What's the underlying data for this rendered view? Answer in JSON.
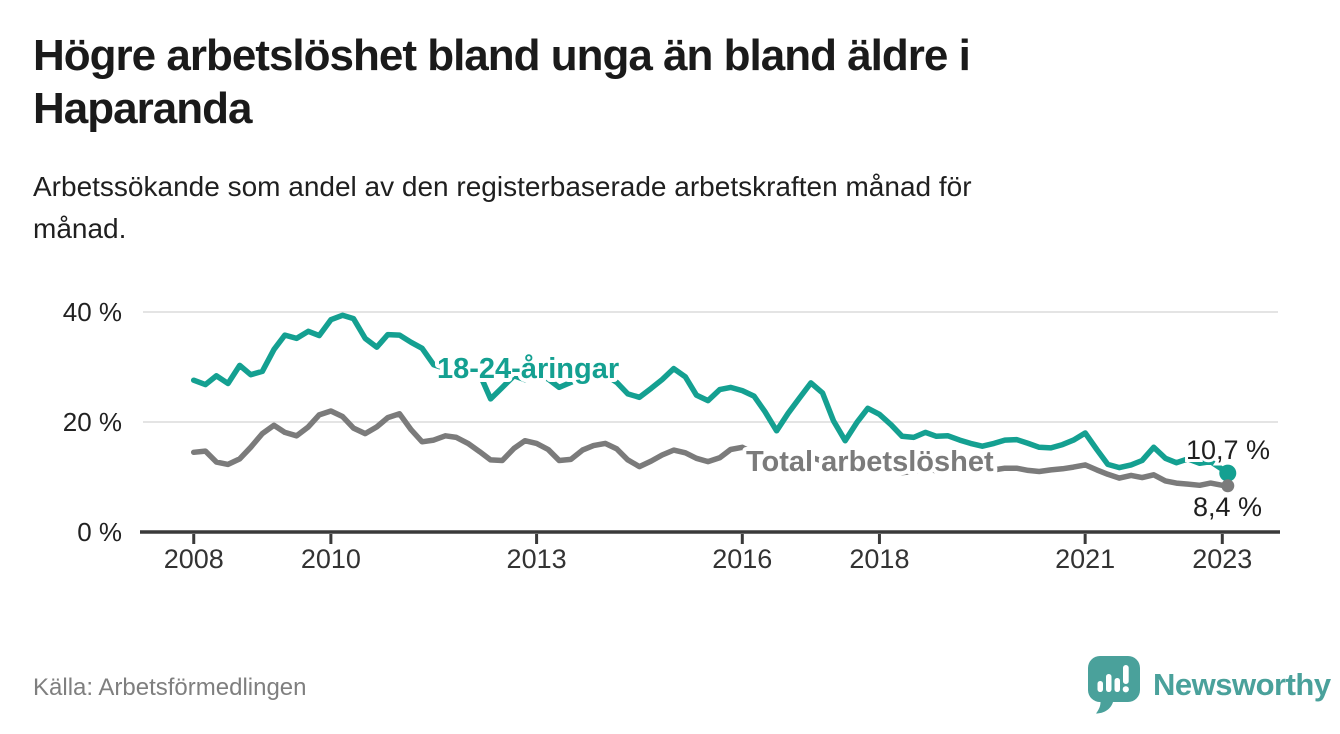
{
  "header": {
    "title": "Högre arbetslöshet bland unga än bland äldre i Haparanda",
    "subtitle": "Arbetssökande som andel av den registerbaserade arbetskraften månad för månad."
  },
  "footer": {
    "source": "Källa: Arbetsförmedlingen",
    "brand": "Newsworthy",
    "brand_icon": "bar-chart-speech-bubble-icon"
  },
  "colors": {
    "youth_line": "#14a091",
    "total_line": "#7b7b7b",
    "axis": "#3a3a3a",
    "gridline": "#dcdcdc",
    "tick_label": "#333333",
    "value_label": "#1f1f1f",
    "brand_teal": "#4aa19b",
    "source_text": "#7f7f7f"
  },
  "chart_data": {
    "type": "line",
    "title": "Högre arbetslöshet bland unga än bland äldre i Haparanda",
    "subtitle": "Arbetssökande som andel av den registerbaserade arbetskraften månad för månad.",
    "xlabel": "",
    "ylabel": "",
    "grid": "horizontal-only",
    "legend_position": "inline-labels-on-lines",
    "xlim": [
      2007.26,
      2023.84
    ],
    "ylim": [
      0,
      43
    ],
    "x_ticks": [
      2008,
      2010,
      2013,
      2016,
      2018,
      2021,
      2023
    ],
    "y_ticks": [
      {
        "value": 0,
        "label": "0 %"
      },
      {
        "value": 20,
        "label": "20 %"
      },
      {
        "value": 40,
        "label": "40 %"
      }
    ],
    "series": [
      {
        "name": "18-24-åringar",
        "color": "#14a091",
        "end_label": "10,7 %",
        "end_dot": true,
        "points": [
          [
            2008.0,
            27.6
          ],
          [
            2008.17,
            26.8
          ],
          [
            2008.33,
            28.4
          ],
          [
            2008.5,
            27.0
          ],
          [
            2008.67,
            30.3
          ],
          [
            2008.83,
            28.6
          ],
          [
            2009.0,
            29.2
          ],
          [
            2009.17,
            33.2
          ],
          [
            2009.33,
            35.8
          ],
          [
            2009.5,
            35.2
          ],
          [
            2009.67,
            36.5
          ],
          [
            2009.83,
            35.7
          ],
          [
            2010.0,
            38.6
          ],
          [
            2010.17,
            39.4
          ],
          [
            2010.33,
            38.8
          ],
          [
            2010.5,
            35.2
          ],
          [
            2010.67,
            33.6
          ],
          [
            2010.83,
            35.9
          ],
          [
            2011.0,
            35.8
          ],
          [
            2011.17,
            34.5
          ],
          [
            2011.33,
            33.4
          ],
          [
            2011.5,
            30.4
          ],
          [
            2011.67,
            29.7
          ],
          [
            2011.83,
            30.3
          ],
          [
            2012.0,
            29.4
          ],
          [
            2012.17,
            28.7
          ],
          [
            2012.33,
            24.2
          ],
          [
            2012.5,
            26.3
          ],
          [
            2012.67,
            28.4
          ],
          [
            2012.83,
            27.7
          ],
          [
            2013.0,
            28.7
          ],
          [
            2013.17,
            27.8
          ],
          [
            2013.33,
            26.3
          ],
          [
            2013.5,
            27.2
          ],
          [
            2013.67,
            28.3
          ],
          [
            2013.83,
            28.9
          ],
          [
            2014.0,
            28.6
          ],
          [
            2014.17,
            27.2
          ],
          [
            2014.33,
            25.1
          ],
          [
            2014.5,
            24.5
          ],
          [
            2014.67,
            26.1
          ],
          [
            2014.83,
            27.7
          ],
          [
            2015.0,
            29.7
          ],
          [
            2015.17,
            28.2
          ],
          [
            2015.33,
            24.9
          ],
          [
            2015.5,
            23.9
          ],
          [
            2015.67,
            25.9
          ],
          [
            2015.83,
            26.3
          ],
          [
            2016.0,
            25.7
          ],
          [
            2016.17,
            24.7
          ],
          [
            2016.33,
            21.9
          ],
          [
            2016.5,
            18.4
          ],
          [
            2016.67,
            21.6
          ],
          [
            2016.83,
            24.3
          ],
          [
            2017.0,
            27.1
          ],
          [
            2017.17,
            25.3
          ],
          [
            2017.33,
            20.2
          ],
          [
            2017.5,
            16.6
          ],
          [
            2017.67,
            19.9
          ],
          [
            2017.83,
            22.5
          ],
          [
            2018.0,
            21.4
          ],
          [
            2018.17,
            19.5
          ],
          [
            2018.33,
            17.4
          ],
          [
            2018.5,
            17.2
          ],
          [
            2018.67,
            18.1
          ],
          [
            2018.83,
            17.4
          ],
          [
            2019.0,
            17.5
          ],
          [
            2019.17,
            16.7
          ],
          [
            2019.33,
            16.1
          ],
          [
            2019.5,
            15.6
          ],
          [
            2019.67,
            16.1
          ],
          [
            2019.83,
            16.7
          ],
          [
            2020.0,
            16.8
          ],
          [
            2020.17,
            16.1
          ],
          [
            2020.33,
            15.4
          ],
          [
            2020.5,
            15.3
          ],
          [
            2020.67,
            15.9
          ],
          [
            2020.83,
            16.7
          ],
          [
            2021.0,
            18.0
          ],
          [
            2021.17,
            15.0
          ],
          [
            2021.33,
            12.3
          ],
          [
            2021.5,
            11.7
          ],
          [
            2021.67,
            12.2
          ],
          [
            2021.83,
            13.0
          ],
          [
            2022.0,
            15.4
          ],
          [
            2022.17,
            13.4
          ],
          [
            2022.33,
            12.6
          ],
          [
            2022.5,
            13.3
          ],
          [
            2022.67,
            12.5
          ],
          [
            2022.83,
            12.8
          ],
          [
            2023.0,
            11.4
          ],
          [
            2023.08,
            10.7
          ]
        ]
      },
      {
        "name": "Total arbetslöshet",
        "color": "#7b7b7b",
        "end_label": "8,4 %",
        "end_dot": true,
        "points": [
          [
            2008.0,
            14.5
          ],
          [
            2008.17,
            14.7
          ],
          [
            2008.33,
            12.7
          ],
          [
            2008.5,
            12.3
          ],
          [
            2008.67,
            13.3
          ],
          [
            2008.83,
            15.4
          ],
          [
            2009.0,
            17.9
          ],
          [
            2009.17,
            19.4
          ],
          [
            2009.33,
            18.1
          ],
          [
            2009.5,
            17.5
          ],
          [
            2009.67,
            19.1
          ],
          [
            2009.83,
            21.3
          ],
          [
            2010.0,
            22.0
          ],
          [
            2010.17,
            21.0
          ],
          [
            2010.33,
            18.9
          ],
          [
            2010.5,
            17.9
          ],
          [
            2010.67,
            19.1
          ],
          [
            2010.83,
            20.8
          ],
          [
            2011.0,
            21.5
          ],
          [
            2011.17,
            18.6
          ],
          [
            2011.33,
            16.4
          ],
          [
            2011.5,
            16.7
          ],
          [
            2011.67,
            17.5
          ],
          [
            2011.83,
            17.2
          ],
          [
            2012.0,
            16.1
          ],
          [
            2012.17,
            14.6
          ],
          [
            2012.33,
            13.1
          ],
          [
            2012.5,
            13.0
          ],
          [
            2012.67,
            15.2
          ],
          [
            2012.83,
            16.6
          ],
          [
            2013.0,
            16.1
          ],
          [
            2013.17,
            15.0
          ],
          [
            2013.33,
            13.0
          ],
          [
            2013.5,
            13.2
          ],
          [
            2013.67,
            14.9
          ],
          [
            2013.83,
            15.7
          ],
          [
            2014.0,
            16.1
          ],
          [
            2014.17,
            15.1
          ],
          [
            2014.33,
            13.1
          ],
          [
            2014.5,
            11.9
          ],
          [
            2014.67,
            12.9
          ],
          [
            2014.83,
            14.0
          ],
          [
            2015.0,
            14.9
          ],
          [
            2015.17,
            14.4
          ],
          [
            2015.33,
            13.4
          ],
          [
            2015.5,
            12.8
          ],
          [
            2015.67,
            13.5
          ],
          [
            2015.83,
            15.0
          ],
          [
            2016.0,
            15.4
          ],
          [
            2016.17,
            14.3
          ],
          [
            2016.33,
            12.8
          ],
          [
            2016.5,
            12.5
          ],
          [
            2016.67,
            13.2
          ],
          [
            2016.83,
            13.8
          ],
          [
            2017.0,
            13.6
          ],
          [
            2017.17,
            12.9
          ],
          [
            2017.33,
            11.9
          ],
          [
            2017.5,
            11.6
          ],
          [
            2017.67,
            12.2
          ],
          [
            2017.83,
            12.7
          ],
          [
            2018.0,
            12.5
          ],
          [
            2018.17,
            11.8
          ],
          [
            2018.33,
            10.8
          ],
          [
            2018.5,
            11.0
          ],
          [
            2018.67,
            11.6
          ],
          [
            2018.83,
            11.1
          ],
          [
            2019.0,
            11.4
          ],
          [
            2019.17,
            11.6
          ],
          [
            2019.33,
            11.2
          ],
          [
            2019.5,
            11.5
          ],
          [
            2019.67,
            11.3
          ],
          [
            2019.83,
            11.6
          ],
          [
            2020.0,
            11.6
          ],
          [
            2020.17,
            11.2
          ],
          [
            2020.33,
            11.0
          ],
          [
            2020.5,
            11.3
          ],
          [
            2020.67,
            11.5
          ],
          [
            2020.83,
            11.8
          ],
          [
            2021.0,
            12.2
          ],
          [
            2021.17,
            11.3
          ],
          [
            2021.33,
            10.5
          ],
          [
            2021.5,
            9.8
          ],
          [
            2021.67,
            10.3
          ],
          [
            2021.83,
            9.9
          ],
          [
            2022.0,
            10.4
          ],
          [
            2022.17,
            9.3
          ],
          [
            2022.33,
            8.9
          ],
          [
            2022.5,
            8.7
          ],
          [
            2022.67,
            8.5
          ],
          [
            2022.83,
            8.9
          ],
          [
            2023.0,
            8.5
          ],
          [
            2023.08,
            8.4
          ]
        ]
      }
    ]
  }
}
